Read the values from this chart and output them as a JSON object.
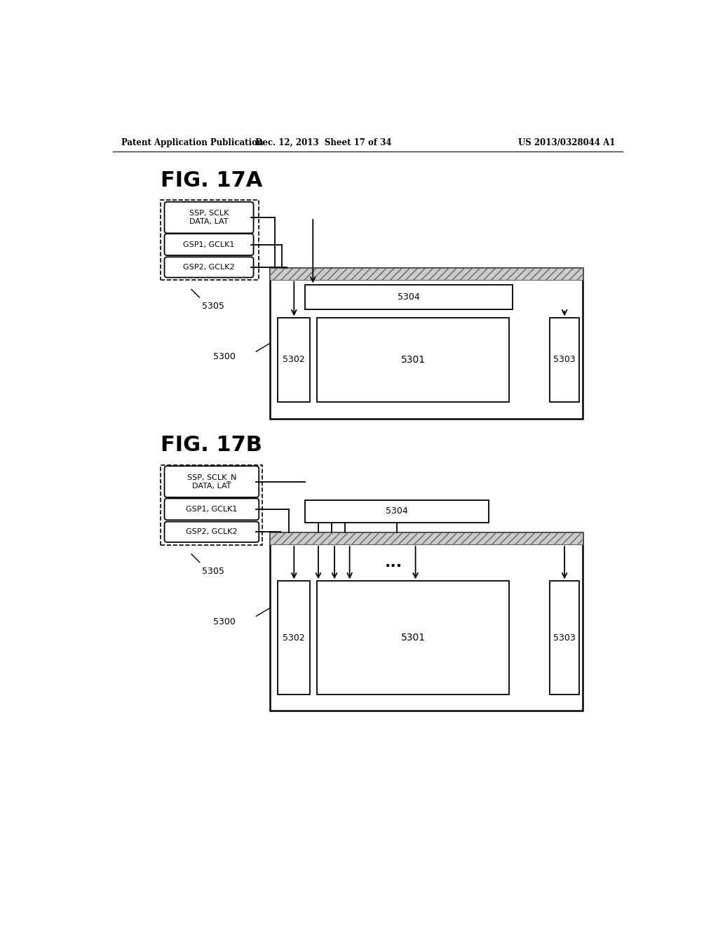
{
  "header_left": "Patent Application Publication",
  "header_mid": "Dec. 12, 2013  Sheet 17 of 34",
  "header_right": "US 2013/0328044 A1",
  "fig_a_title": "FIG. 17A",
  "fig_b_title": "FIG. 17B",
  "label_ssp_a": "SSP, SCLK\nDATA, LAT",
  "label_gsp1_a": "GSP1, GCLK1",
  "label_gsp2_a": "GSP2, GCLK2",
  "label_ssp_b": "SSP, SCLK_N\nDATA, LAT",
  "label_gsp1_b": "GSP1, GCLK1",
  "label_gsp2_b": "GSP2, GCLK2",
  "label_5305": "5305",
  "label_5300_a": "5300",
  "label_5300_b": "5300",
  "label_5304": "5304",
  "label_5301": "5301",
  "label_5302": "5302",
  "label_5303": "5303",
  "bg_color": "#ffffff",
  "line_color": "#000000"
}
